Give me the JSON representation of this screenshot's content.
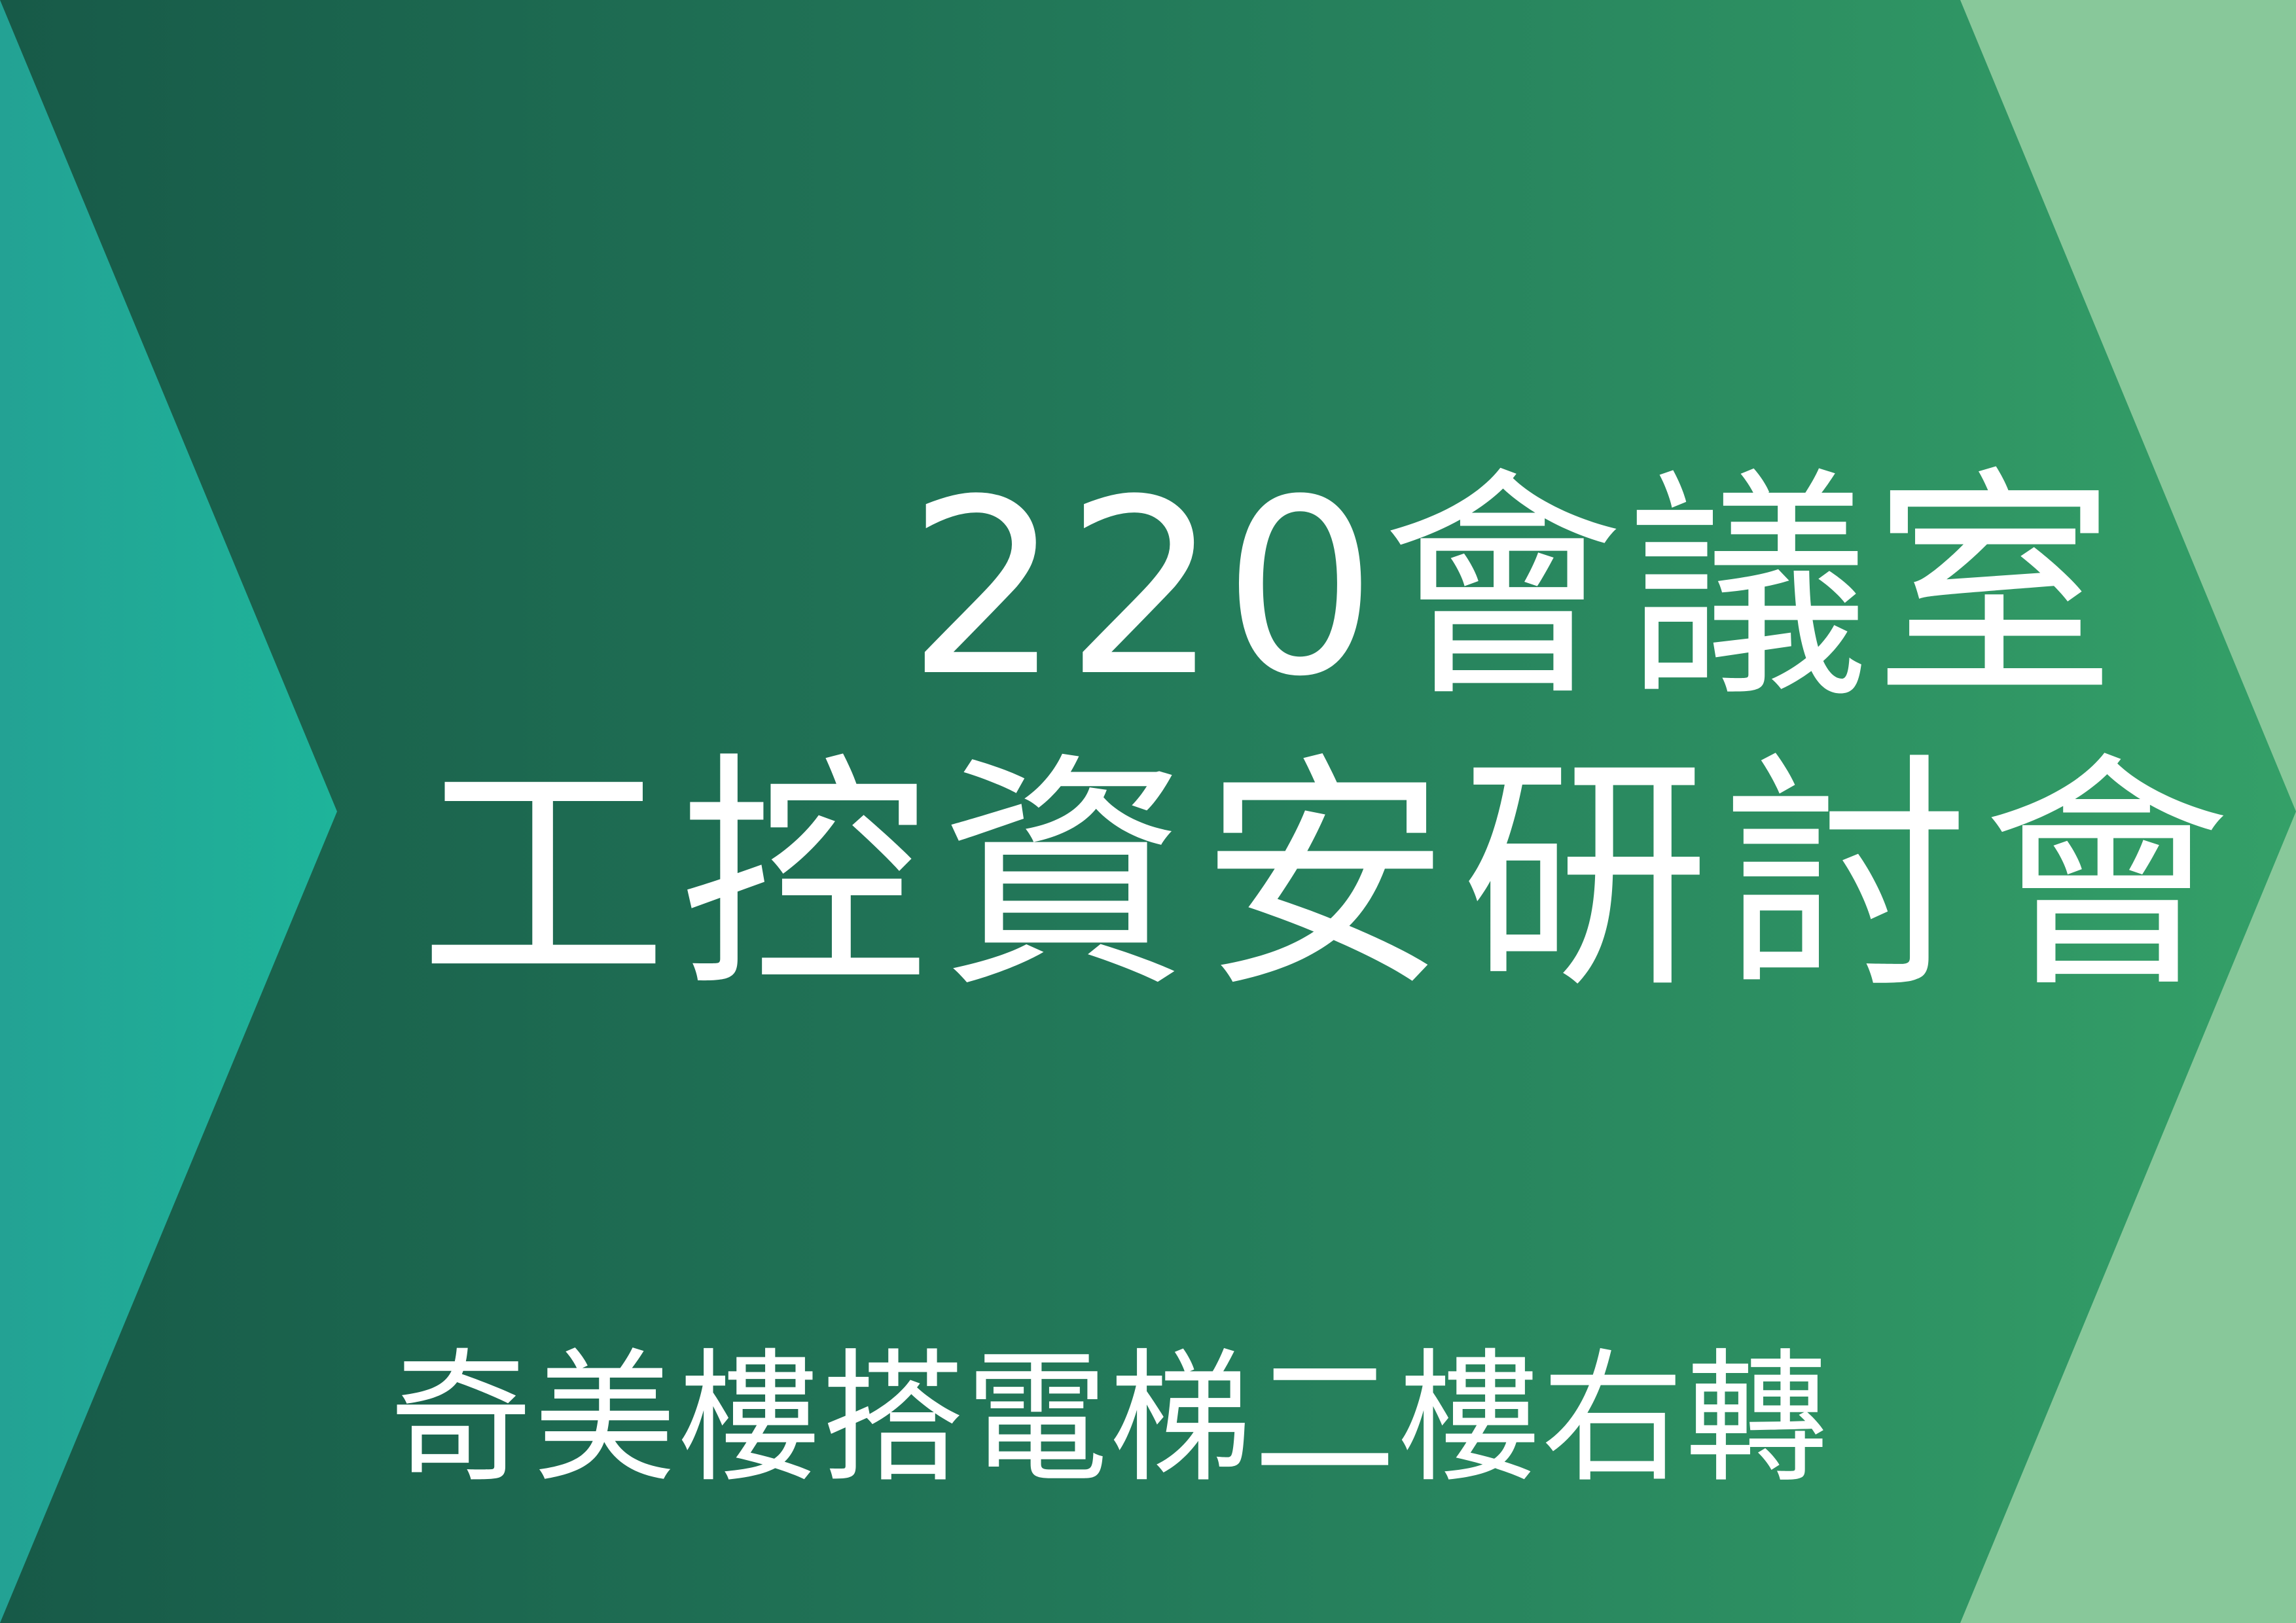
{
  "sign": {
    "room_title": "220會議室",
    "event_title": "工控資安研討會",
    "directions": "奇美樓搭電梯二樓右轉"
  },
  "colors": {
    "background_gradient_start": "#175a48",
    "background_gradient_end": "#34a068",
    "left_chevron_start": "#23a294",
    "left_chevron_end": "#1eb49a",
    "right_panel": "#88c89a",
    "text": "#ffffff"
  }
}
